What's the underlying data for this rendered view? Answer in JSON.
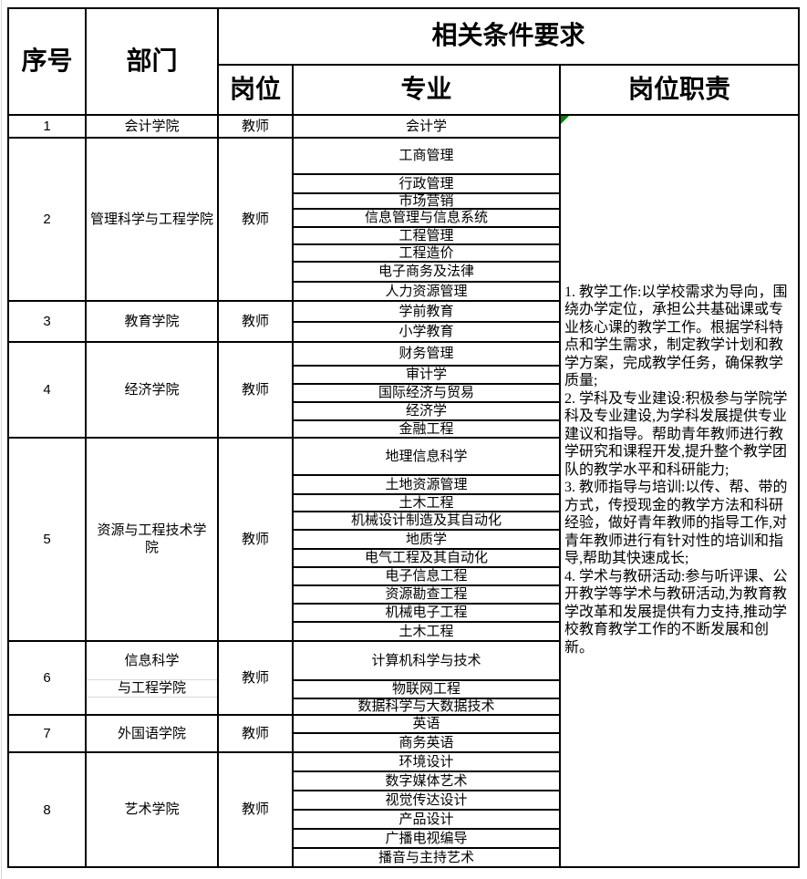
{
  "header": {
    "col_no": "序号",
    "col_dept": "部门",
    "col_conditions": "相关条件要求",
    "col_post": "岗位",
    "col_major": "专业",
    "col_duty": "岗位职责"
  },
  "rows": [
    {
      "no": "1",
      "dept": "会计学院",
      "post": "教师",
      "majors": [
        "会计学"
      ]
    },
    {
      "no": "2",
      "dept": "管理科学与工程学院",
      "post": "教师",
      "majors": [
        "工商管理",
        "行政管理",
        "市场营销",
        "信息管理与信息系统",
        "工程管理",
        "工程造价",
        "电子商务及法律",
        "人力资源管理"
      ]
    },
    {
      "no": "3",
      "dept": "教育学院",
      "post": "教师",
      "majors": [
        "学前教育",
        "小学教育"
      ]
    },
    {
      "no": "4",
      "dept": "经济学院",
      "post": "教师",
      "majors": [
        "财务管理",
        "审计学",
        "国际经济与贸易",
        "经济学",
        "金融工程"
      ]
    },
    {
      "no": "5",
      "dept_line1": "资源与工程技术学",
      "dept_line2": "院",
      "post": "教师",
      "majors": [
        "地理信息科学",
        "土地资源管理",
        "土木工程",
        "机械设计制造及其自动化",
        "地质学",
        "电气工程及其自动化",
        "电子信息工程",
        "资源勘查工程",
        "机械电子工程",
        "土木工程"
      ]
    },
    {
      "no": "6",
      "dept_line1": "信息科学",
      "dept_line2": "与工程学院",
      "post": "教师",
      "majors": [
        "计算机科学与技术",
        "物联网工程",
        "数据科学与大数据技术"
      ]
    },
    {
      "no": "7",
      "dept": "外国语学院",
      "post": "教师",
      "majors": [
        "英语",
        "商务英语"
      ]
    },
    {
      "no": "8",
      "dept": "艺术学院",
      "post": "教师",
      "majors": [
        "环境设计",
        "数字媒体艺术",
        "视觉传达设计",
        "产品设计",
        "广播电视编导",
        "播音与主持艺术"
      ]
    }
  ],
  "duty": {
    "paragraphs": [
      "1.  教学工作:以学校需求为导向，围绕办学定位，承担公共基础课或专业核心课的教学工作。根据学科特点和学生需求，制定教学计划和教学方案，完成教学任务，确保教学质量;",
      "2.  学科及专业建设:积极参与学院学科及专业建设,为学科发展提供专业建议和指导。帮助青年教师进行教学研究和课程开发,提升整个教学团队的教学水平和科研能力;",
      "3.  教师指导与培训:以传、帮、带的方式，传授现金的教学方法和科研经验，做好青年教师的指导工作,对青年教师进行有针对性的培训和指导,帮助其快速成长;",
      "4.  学术与教研活动:参与听评课、公开教学等学术与教研活动,为教育教学改革和发展提供有力支持,推动学校教育教学工作的不断发展和创新。"
    ]
  },
  "icons": {
    "comment_triangle": "green-comment-triangle"
  },
  "colors": {
    "border": "#000000",
    "light_gridline": "#d9d9d9",
    "comment_green": "#008000",
    "text": "#000000",
    "background": "#ffffff"
  }
}
